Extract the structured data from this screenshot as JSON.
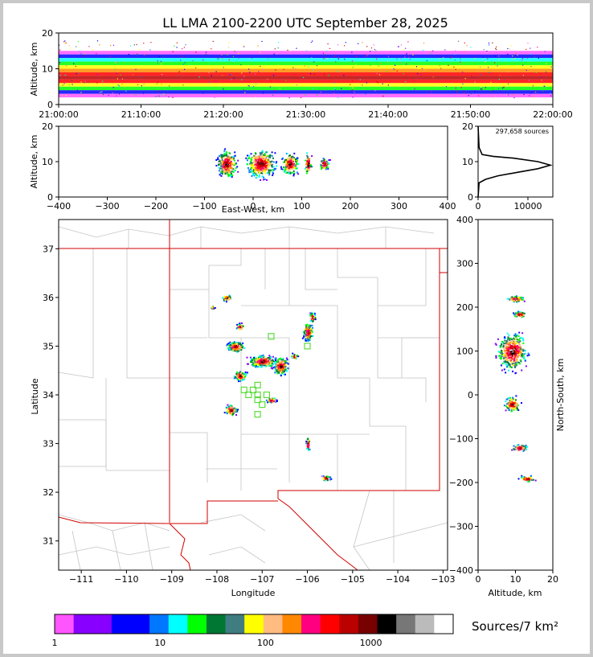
{
  "chart_data": [
    {
      "type": "heatmap",
      "panel": "altitude-time",
      "title": "LL LMA 2100-2200 UTC September 28, 2025",
      "ylabel": "Altitude, km",
      "ylim": [
        0,
        20
      ],
      "yticks": [
        "0",
        "10",
        "20"
      ],
      "xticks": [
        "21:00:00",
        "21:10:00",
        "21:20:00",
        "21:30:00",
        "21:40:00",
        "21:50:00",
        "22:00:00"
      ],
      "band_altitude_km": [
        2,
        15
      ]
    },
    {
      "type": "heatmap",
      "panel": "altitude-eastwest",
      "xlabel": "East-West, km",
      "ylabel": "Altitude, km",
      "xlim": [
        -400,
        400
      ],
      "ylim": [
        0,
        20
      ],
      "xticks": [
        "−400",
        "−300",
        "−200",
        "−100",
        "0",
        "100",
        "200",
        "300",
        "400"
      ],
      "yticks": [
        "0",
        "10",
        "20"
      ],
      "clusters_x_km": [
        -55,
        15,
        75,
        112,
        145
      ]
    },
    {
      "type": "line",
      "panel": "altitude-histogram",
      "annotation": "297,658 sources",
      "xlim": [
        0,
        15000
      ],
      "ylim": [
        0,
        20
      ],
      "xticks": [
        "0",
        "10000"
      ],
      "yticks": [
        "0",
        "10",
        "20"
      ],
      "x": [
        0,
        200,
        1500,
        4000,
        8000,
        12000,
        14500,
        12000,
        7000,
        3000,
        800,
        200,
        0
      ],
      "y": [
        0,
        4,
        5,
        6,
        7,
        8,
        9,
        10,
        11,
        11.5,
        12,
        14,
        20
      ]
    },
    {
      "type": "heatmap",
      "panel": "plan-view",
      "xlabel": "Longitude",
      "ylabel": "Latitude",
      "xlim": [
        -111.5,
        -102.9
      ],
      "ylim": [
        30.4,
        37.6
      ],
      "xticks": [
        "−111",
        "−110",
        "−109",
        "−108",
        "−107",
        "−106",
        "−105",
        "−104",
        "−103"
      ],
      "yticks": [
        "31",
        "32",
        "33",
        "34",
        "35",
        "36",
        "37"
      ],
      "stations": [
        [
          -107.1,
          34.2
        ],
        [
          -107.2,
          34.1
        ],
        [
          -107.3,
          34.0
        ],
        [
          -107.1,
          34.0
        ],
        [
          -107.1,
          33.9
        ],
        [
          -107.0,
          33.8
        ],
        [
          -107.1,
          33.6
        ],
        [
          -106.9,
          34.0
        ],
        [
          -106.8,
          35.2
        ],
        [
          -106.0,
          35.0
        ],
        [
          -107.4,
          34.1
        ]
      ],
      "storms": [
        [
          -107.0,
          34.7
        ],
        [
          -107.6,
          35.0
        ],
        [
          -106.6,
          34.6
        ],
        [
          -106.0,
          35.3
        ],
        [
          -105.9,
          35.6
        ],
        [
          -107.5,
          34.4
        ],
        [
          -107.7,
          33.7
        ],
        [
          -106.8,
          33.9
        ],
        [
          -106.0,
          33.0
        ],
        [
          -105.6,
          32.3
        ],
        [
          -107.8,
          36.0
        ],
        [
          -107.5,
          35.4
        ],
        [
          -108.1,
          35.8
        ],
        [
          -106.3,
          34.8
        ]
      ]
    },
    {
      "type": "heatmap",
      "panel": "northsouth-altitude",
      "xlabel": "Altitude, km",
      "ylabel": "North-South, km",
      "xlim": [
        0,
        20
      ],
      "ylim": [
        -400,
        400
      ],
      "xticks": [
        "0",
        "10",
        "20"
      ],
      "yticks": [
        "−400",
        "−300",
        "−200",
        "−100",
        "0",
        "100",
        "200",
        "300",
        "400"
      ],
      "clusters_y_km": [
        220,
        185,
        100,
        -20,
        -120,
        -190
      ]
    }
  ],
  "colorbar": {
    "label": "Sources/7 km²",
    "ticks": [
      "1",
      "10",
      "100",
      "1000"
    ],
    "colors": [
      "#ff55ff",
      "#8800ff",
      "#8800ff",
      "#0000ff",
      "#0000ff",
      "#0077ff",
      "#00ffff",
      "#00ff00",
      "#007733",
      "#407d80",
      "#ffff00",
      "#ffbb80",
      "#ff8800",
      "#ff0080",
      "#ff0000",
      "#bb0000",
      "#770000",
      "#000000",
      "#777777",
      "#bbbbbb",
      "#ffffff"
    ]
  }
}
